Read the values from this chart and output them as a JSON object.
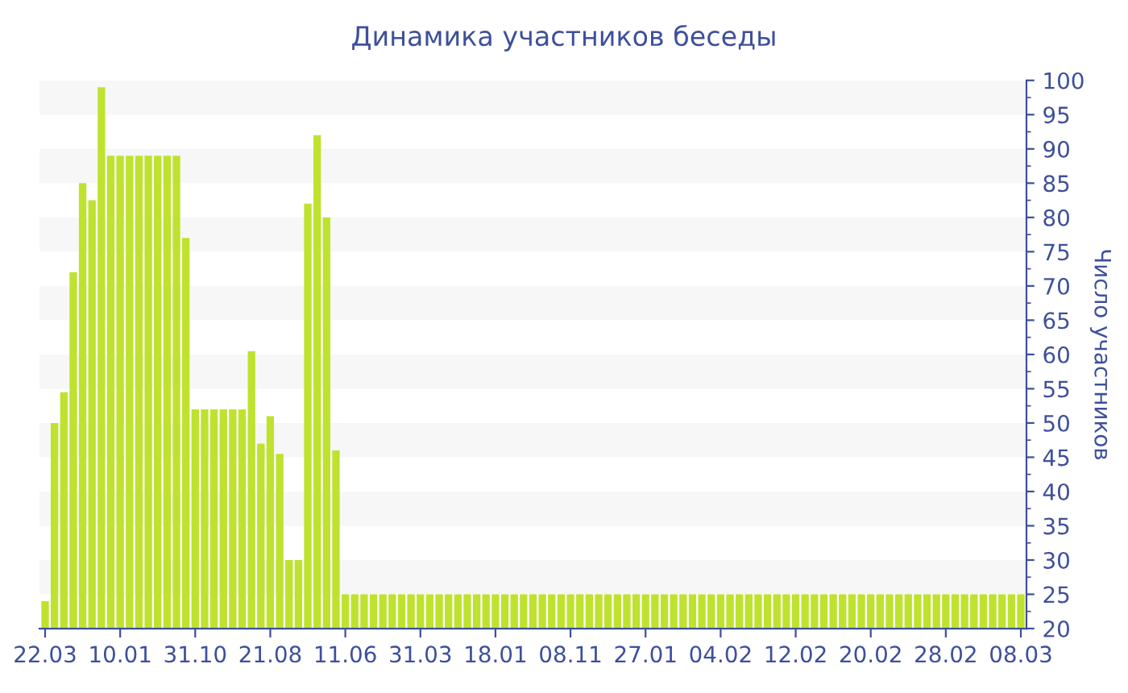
{
  "chart_data": {
    "type": "bar",
    "title": "Динамика участников беседы",
    "ylabel": "Число участников",
    "categories": [
      "22.03",
      null,
      null,
      null,
      null,
      null,
      null,
      null,
      "10.01",
      null,
      null,
      null,
      null,
      null,
      null,
      null,
      "31.10",
      null,
      null,
      null,
      null,
      null,
      null,
      null,
      "21.08",
      null,
      null,
      null,
      null,
      null,
      null,
      null,
      "11.06",
      null,
      null,
      null,
      null,
      null,
      null,
      null,
      "31.03",
      null,
      null,
      null,
      null,
      null,
      null,
      null,
      "18.01",
      null,
      null,
      null,
      null,
      null,
      null,
      null,
      "08.11",
      null,
      null,
      null,
      null,
      null,
      null,
      null,
      "27.01",
      null,
      null,
      null,
      null,
      null,
      null,
      null,
      "04.02",
      null,
      null,
      null,
      null,
      null,
      null,
      null,
      "12.02",
      null,
      null,
      null,
      null,
      null,
      null,
      null,
      "20.02",
      null,
      null,
      null,
      null,
      null,
      null,
      null,
      "28.02",
      null,
      null,
      null,
      null,
      null,
      null,
      null,
      "08.03"
    ],
    "values": [
      24,
      50,
      54.5,
      72,
      85,
      82.5,
      99,
      89,
      89,
      89,
      89,
      89,
      89,
      89,
      89,
      77,
      52,
      52,
      52,
      52,
      52,
      52,
      60.5,
      47,
      51,
      45.5,
      30,
      30,
      82,
      92,
      80,
      46,
      25,
      25,
      25,
      25,
      25,
      25,
      25,
      25,
      25,
      25,
      25,
      25,
      25,
      25,
      25,
      25,
      25,
      25,
      25,
      25,
      25,
      25,
      25,
      25,
      25,
      25,
      25,
      25,
      25,
      25,
      25,
      25,
      25,
      25,
      25,
      25,
      25,
      25,
      25,
      25,
      25,
      25,
      25,
      25,
      25,
      25,
      25,
      25,
      25,
      25,
      25,
      25,
      25,
      25,
      25,
      25,
      25,
      25,
      25,
      25,
      25,
      25,
      25,
      25,
      25,
      25,
      25,
      25,
      25,
      25,
      25,
      25,
      25
    ],
    "color": "#bfe22f",
    "ylim": [
      20,
      100
    ],
    "yticks": [
      20,
      25,
      30,
      35,
      40,
      45,
      50,
      55,
      60,
      65,
      70,
      75,
      80,
      85,
      90,
      95,
      100
    ],
    "bands": [
      {
        "axis": "y",
        "from": 25,
        "to": 30,
        "color": "#f7f7f7"
      },
      {
        "axis": "y",
        "from": 35,
        "to": 40,
        "color": "#f7f7f7"
      },
      {
        "axis": "y",
        "from": 45,
        "to": 50,
        "color": "#f7f7f7"
      },
      {
        "axis": "y",
        "from": 55,
        "to": 60,
        "color": "#f7f7f7"
      },
      {
        "axis": "y",
        "from": 65,
        "to": 70,
        "color": "#f7f7f7"
      },
      {
        "axis": "y",
        "from": 75,
        "to": 80,
        "color": "#f7f7f7"
      },
      {
        "axis": "y",
        "from": 85,
        "to": 90,
        "color": "#f7f7f7"
      },
      {
        "axis": "y",
        "from": 95,
        "to": 100,
        "color": "#f7f7f7"
      }
    ],
    "grid": false
  }
}
